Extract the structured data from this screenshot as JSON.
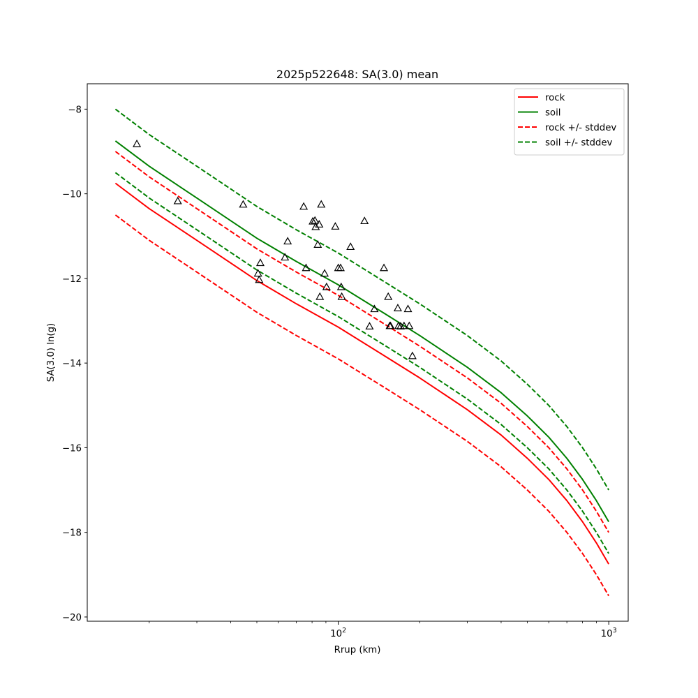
{
  "chart_data": {
    "type": "line",
    "title": "2025p522648: SA(3.0) mean",
    "xlabel": "Rrup (km)",
    "ylabel": "SA(3.0) ln(g)",
    "xscale": "log",
    "xlim": [
      11.8,
      1180
    ],
    "ylim": [
      -20.1,
      -7.4
    ],
    "xticks": [
      {
        "value": 100,
        "base": "10",
        "exp": "2"
      },
      {
        "value": 1000,
        "base": "10",
        "exp": "3"
      }
    ],
    "yticks": [
      -8,
      -10,
      -12,
      -14,
      -16,
      -18,
      -20
    ],
    "ytick_labels": [
      "−8",
      "−10",
      "−12",
      "−14",
      "−16",
      "−18",
      "−20"
    ],
    "grid": false,
    "legend_position": "top-right",
    "series": [
      {
        "name": "rock",
        "color": "#ff0000",
        "dash": "solid",
        "legend": true,
        "x": [
          15,
          20,
          30,
          50,
          70,
          100,
          150,
          200,
          300,
          400,
          500,
          600,
          700,
          800,
          900,
          1000
        ],
        "y": [
          -9.75,
          -10.35,
          -11.1,
          -12.05,
          -12.6,
          -13.15,
          -13.85,
          -14.35,
          -15.1,
          -15.7,
          -16.25,
          -16.75,
          -17.25,
          -17.75,
          -18.25,
          -18.75
        ]
      },
      {
        "name": "soil",
        "color": "#008000",
        "dash": "solid",
        "legend": true,
        "x": [
          15,
          20,
          30,
          50,
          70,
          100,
          150,
          200,
          300,
          400,
          500,
          600,
          700,
          800,
          900,
          1000
        ],
        "y": [
          -8.75,
          -9.35,
          -10.1,
          -11.05,
          -11.6,
          -12.15,
          -12.85,
          -13.35,
          -14.1,
          -14.7,
          -15.25,
          -15.75,
          -16.25,
          -16.75,
          -17.25,
          -17.75
        ]
      },
      {
        "name": "rock +/- stddev",
        "color": "#ff0000",
        "dash": "dashed",
        "legend": true,
        "x": [
          15,
          20,
          30,
          50,
          70,
          100,
          150,
          200,
          300,
          400,
          500,
          600,
          700,
          800,
          900,
          1000
        ],
        "y": [
          -9.0,
          -9.6,
          -10.35,
          -11.3,
          -11.85,
          -12.4,
          -13.1,
          -13.6,
          -14.35,
          -14.95,
          -15.5,
          -16.0,
          -16.5,
          -17.0,
          -17.5,
          -18.0
        ]
      },
      {
        "name": "rock +/- stddev",
        "color": "#ff0000",
        "dash": "dashed",
        "legend": false,
        "x": [
          15,
          20,
          30,
          50,
          70,
          100,
          150,
          200,
          300,
          400,
          500,
          600,
          700,
          800,
          900,
          1000
        ],
        "y": [
          -10.5,
          -11.1,
          -11.85,
          -12.8,
          -13.35,
          -13.9,
          -14.6,
          -15.1,
          -15.85,
          -16.45,
          -17.0,
          -17.5,
          -18.0,
          -18.5,
          -19.0,
          -19.5
        ]
      },
      {
        "name": "soil +/- stddev",
        "color": "#008000",
        "dash": "dashed",
        "legend": true,
        "x": [
          15,
          20,
          30,
          50,
          70,
          100,
          150,
          200,
          300,
          400,
          500,
          600,
          700,
          800,
          900,
          1000
        ],
        "y": [
          -8.0,
          -8.6,
          -9.35,
          -10.3,
          -10.85,
          -11.4,
          -12.1,
          -12.6,
          -13.35,
          -13.95,
          -14.5,
          -15.0,
          -15.5,
          -16.0,
          -16.5,
          -17.0
        ]
      },
      {
        "name": "soil +/- stddev",
        "color": "#008000",
        "dash": "dashed",
        "legend": false,
        "x": [
          15,
          20,
          30,
          50,
          70,
          100,
          150,
          200,
          300,
          400,
          500,
          600,
          700,
          800,
          900,
          1000
        ],
        "y": [
          -9.5,
          -10.1,
          -10.85,
          -11.8,
          -12.35,
          -12.9,
          -13.6,
          -14.1,
          -14.85,
          -15.45,
          -16.0,
          -16.5,
          -17.0,
          -17.5,
          -18.0,
          -18.5
        ]
      }
    ],
    "observations": {
      "marker": "triangle-open",
      "color": "#000000",
      "points": [
        [
          18,
          -8.82
        ],
        [
          25.5,
          -10.17
        ],
        [
          44.5,
          -10.25
        ],
        [
          50.5,
          -11.88
        ],
        [
          51,
          -12.03
        ],
        [
          51.5,
          -11.63
        ],
        [
          63.5,
          -11.5
        ],
        [
          65,
          -11.12
        ],
        [
          74.5,
          -10.3
        ],
        [
          76,
          -11.75
        ],
        [
          80.5,
          -10.65
        ],
        [
          82,
          -10.63
        ],
        [
          82.5,
          -10.78
        ],
        [
          84,
          -11.2
        ],
        [
          85,
          -10.72
        ],
        [
          85.5,
          -12.43
        ],
        [
          86.5,
          -10.25
        ],
        [
          89,
          -11.88
        ],
        [
          90.5,
          -12.2
        ],
        [
          97.5,
          -10.77
        ],
        [
          100,
          -11.75
        ],
        [
          102,
          -11.75
        ],
        [
          102.5,
          -12.2
        ],
        [
          103,
          -12.43
        ],
        [
          111,
          -11.25
        ],
        [
          125,
          -10.64
        ],
        [
          130.5,
          -13.13
        ],
        [
          136,
          -12.72
        ],
        [
          147.5,
          -11.75
        ],
        [
          153,
          -12.43
        ],
        [
          155,
          -13.12
        ],
        [
          156,
          -13.12
        ],
        [
          166,
          -12.7
        ],
        [
          167,
          -13.12
        ],
        [
          170,
          -13.13
        ],
        [
          175,
          -13.12
        ],
        [
          181,
          -12.72
        ],
        [
          183,
          -13.12
        ],
        [
          188,
          -13.83
        ]
      ]
    }
  }
}
